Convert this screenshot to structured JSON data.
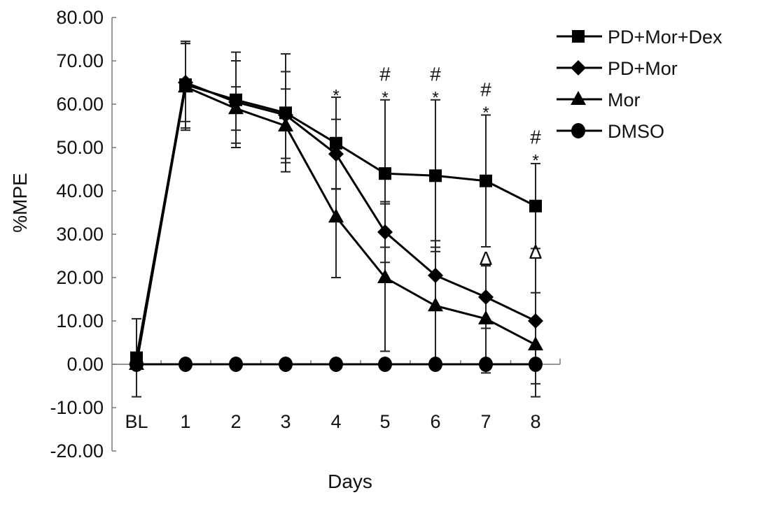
{
  "chart_data": {
    "type": "line",
    "title": "",
    "xlabel": "Days",
    "ylabel": "%MPE",
    "categories": [
      "BL",
      "1",
      "2",
      "3",
      "4",
      "5",
      "6",
      "7",
      "8"
    ],
    "ylim": [
      -20,
      80
    ],
    "yticks": [
      "-20.00",
      "-10.00",
      "0.00",
      "10.00",
      "20.00",
      "30.00",
      "40.00",
      "50.00",
      "60.00",
      "70.00",
      "80.00"
    ],
    "grid": false,
    "legend_position": "top-right",
    "series": [
      {
        "name": "PD+Mor+Dex",
        "marker": "square",
        "values": [
          1.5,
          64.5,
          61,
          58,
          51,
          44,
          43.5,
          42.3,
          36.5
        ],
        "error": [
          9,
          10,
          11,
          13.6,
          10.6,
          17,
          17.5,
          15.2,
          9.8
        ]
      },
      {
        "name": "PD+Mor",
        "marker": "diamond",
        "values": [
          0,
          65,
          60.5,
          57.5,
          48.5,
          30.5,
          20.5,
          15.5,
          10
        ],
        "error": [
          0,
          9,
          9.5,
          10,
          8,
          7,
          8,
          7.2,
          14.5
        ]
      },
      {
        "name": "Mor",
        "marker": "triangle",
        "values": [
          0,
          64,
          59,
          55,
          34,
          20,
          13.5,
          10.5,
          4.5
        ],
        "error": [
          0,
          10,
          5,
          8.5,
          14,
          17,
          13.5,
          12.5,
          12
        ]
      },
      {
        "name": "DMSO",
        "marker": "circle",
        "values": [
          0,
          0,
          0,
          0,
          0,
          0,
          0,
          0,
          0
        ],
        "error": [
          0,
          0,
          0,
          0,
          0,
          0,
          0,
          0,
          0
        ]
      }
    ],
    "annotations": [
      {
        "category": "4",
        "text": "*",
        "y": 63
      },
      {
        "category": "5",
        "text": "*",
        "y": 62.5
      },
      {
        "category": "5",
        "text": "#",
        "y": 67
      },
      {
        "category": "6",
        "text": "*",
        "y": 62.5
      },
      {
        "category": "6",
        "text": "#",
        "y": 67
      },
      {
        "category": "7",
        "text": "*",
        "y": 59
      },
      {
        "category": "7",
        "text": "#",
        "y": 63.5
      },
      {
        "category": "8",
        "text": "*",
        "y": 48
      },
      {
        "category": "8",
        "text": "#",
        "y": 52.5
      },
      {
        "category": "7",
        "text": "Δ",
        "y": 24.5
      },
      {
        "category": "8",
        "text": "Δ",
        "y": 26
      }
    ]
  }
}
